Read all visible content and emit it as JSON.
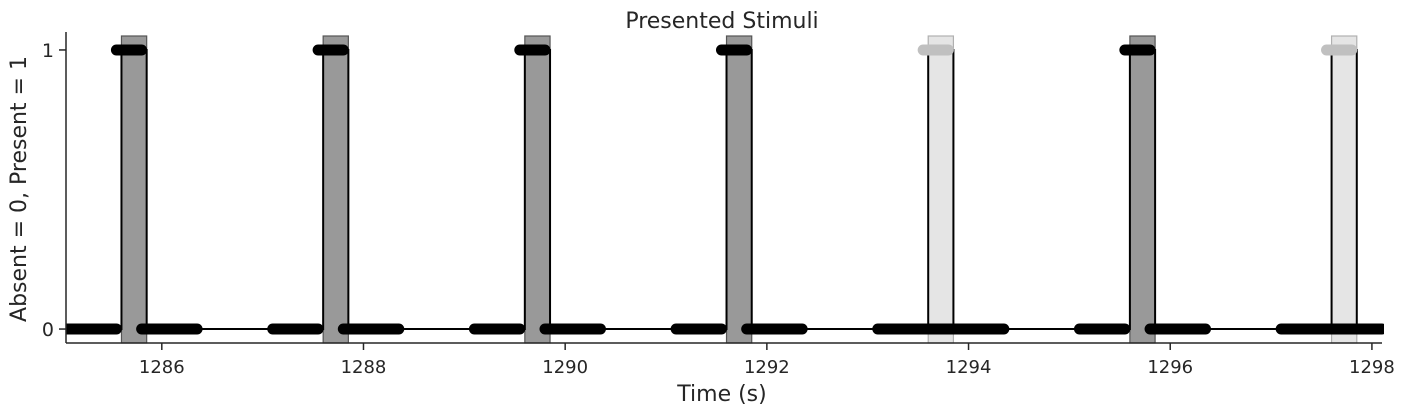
{
  "chart_data": {
    "type": "line",
    "title": "Presented Stimuli",
    "xlabel": "Time (s)",
    "ylabel": "Absent = 0, Present = 1",
    "xlim": [
      1285.05,
      1298.1
    ],
    "ylim": [
      -0.05,
      1.05
    ],
    "xticks": [
      1286,
      1288,
      1290,
      1292,
      1294,
      1296,
      1298
    ],
    "yticks": [
      0,
      1
    ],
    "grid": false,
    "colors": {
      "presented": "#000000",
      "omitted": "#c0c0c0",
      "presented_fill": "#999999",
      "omitted_fill": "#e5e5e5"
    },
    "stimuli": [
      {
        "start": 1285.6,
        "end": 1285.85,
        "kind": "presented"
      },
      {
        "start": 1287.6,
        "end": 1287.85,
        "kind": "presented"
      },
      {
        "start": 1289.6,
        "end": 1289.85,
        "kind": "presented"
      },
      {
        "start": 1291.6,
        "end": 1291.85,
        "kind": "presented"
      },
      {
        "start": 1293.6,
        "end": 1293.85,
        "kind": "omitted"
      },
      {
        "start": 1295.6,
        "end": 1295.85,
        "kind": "presented"
      },
      {
        "start": 1297.6,
        "end": 1297.85,
        "kind": "omitted"
      }
    ],
    "baseline_segments": [
      {
        "start": 1285.0,
        "end": 1285.55,
        "kind": "presented"
      },
      {
        "start": 1285.8,
        "end": 1286.35,
        "kind": "presented"
      },
      {
        "start": 1287.1,
        "end": 1287.55,
        "kind": "presented"
      },
      {
        "start": 1287.8,
        "end": 1288.35,
        "kind": "presented"
      },
      {
        "start": 1289.1,
        "end": 1289.55,
        "kind": "presented"
      },
      {
        "start": 1289.8,
        "end": 1290.35,
        "kind": "presented"
      },
      {
        "start": 1291.1,
        "end": 1291.55,
        "kind": "presented"
      },
      {
        "start": 1291.8,
        "end": 1292.35,
        "kind": "presented"
      },
      {
        "start": 1293.1,
        "end": 1294.35,
        "kind": "presented"
      },
      {
        "start": 1295.1,
        "end": 1295.55,
        "kind": "presented"
      },
      {
        "start": 1295.8,
        "end": 1296.35,
        "kind": "presented"
      },
      {
        "start": 1297.1,
        "end": 1298.1,
        "kind": "presented"
      }
    ],
    "top_segments": [
      {
        "start": 1285.55,
        "end": 1285.8,
        "kind": "presented"
      },
      {
        "start": 1287.55,
        "end": 1287.8,
        "kind": "presented"
      },
      {
        "start": 1289.55,
        "end": 1289.8,
        "kind": "presented"
      },
      {
        "start": 1291.55,
        "end": 1291.8,
        "kind": "presented"
      },
      {
        "start": 1293.55,
        "end": 1293.8,
        "kind": "omitted"
      },
      {
        "start": 1295.55,
        "end": 1295.8,
        "kind": "presented"
      },
      {
        "start": 1297.55,
        "end": 1297.8,
        "kind": "omitted"
      }
    ]
  }
}
